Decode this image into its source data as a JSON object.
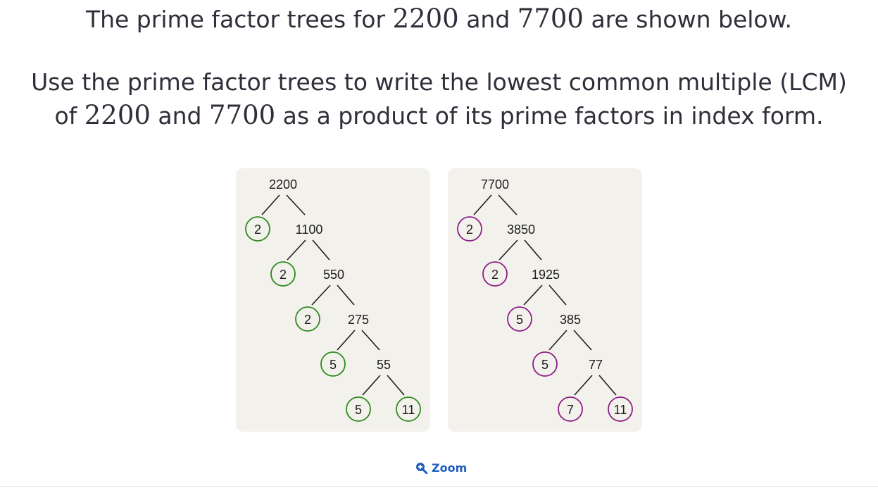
{
  "question": {
    "line1": {
      "before": "The prime factor trees for ",
      "n1": "2200",
      "mid": " and ",
      "n2": "7700",
      "after": " are shown below."
    },
    "line2": "Use the prime factor trees to write the lowest common multiple (LCM)",
    "line3": {
      "before": "of ",
      "n1": "2200",
      "mid": " and ",
      "n2": "7700",
      "after": " as a product of its prime factors in index form."
    }
  },
  "trees": [
    {
      "color": "#2e8b1e",
      "nodes": [
        "2200",
        "2",
        "1100",
        "2",
        "550",
        "2",
        "275",
        "5",
        "55",
        "5",
        "11"
      ]
    },
    {
      "color": "#8c1f86",
      "nodes": [
        "7700",
        "2",
        "3850",
        "2",
        "1925",
        "5",
        "385",
        "5",
        "77",
        "7",
        "11"
      ]
    }
  ],
  "zoom": {
    "label": "Zoom",
    "icon": "zoom-in-icon"
  }
}
